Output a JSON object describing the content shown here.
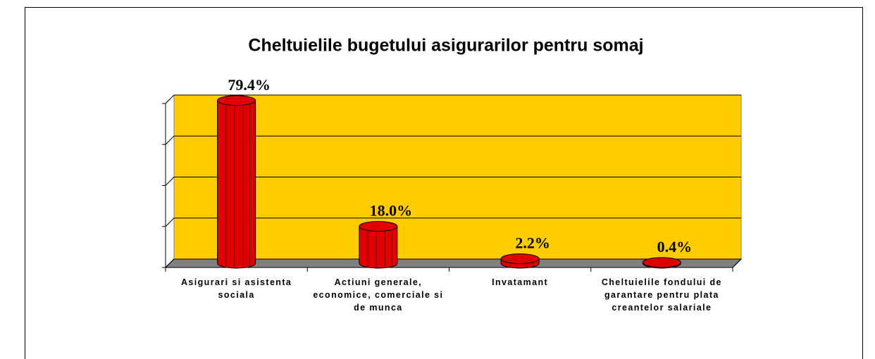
{
  "chart_data": {
    "type": "bar",
    "title": "Cheltuielile bugetului asigurarilor pentru somaj",
    "categories": [
      "Asigurari si asistenta sociala",
      "Actiuni generale, economice, comerciale si de munca",
      "Invatamant",
      "Cheltuielile fondului de garantare pentru plata creantelor salariale"
    ],
    "values": [
      79.4,
      18.0,
      2.2,
      0.4
    ],
    "value_labels": [
      "79.4%",
      "18.0%",
      "2.2%",
      "0.4%"
    ],
    "color": "#e00000",
    "background": "#ffcc00",
    "ylim": [
      0,
      80
    ],
    "yticks": [
      0,
      20,
      40,
      60,
      80
    ],
    "grid": true
  }
}
